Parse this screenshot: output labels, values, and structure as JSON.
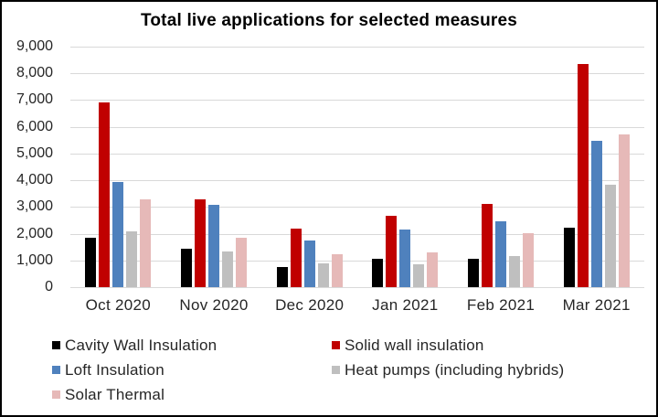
{
  "frame": {
    "background_color": "#FFFFFF",
    "border_color": "#000000"
  },
  "chart_data": {
    "type": "bar",
    "title": "Total live applications for selected measures",
    "xlabel": "",
    "ylabel": "",
    "categories": [
      "Oct 2020",
      "Nov 2020",
      "Dec 2020",
      "Jan 2021",
      "Feb 2021",
      "Mar 2021"
    ],
    "series": [
      {
        "name": "Cavity Wall Insulation",
        "color": "#000000",
        "values": [
          1850,
          1430,
          740,
          1050,
          1060,
          2230
        ]
      },
      {
        "name": "Solid wall insulation",
        "color": "#C00000",
        "values": [
          6900,
          3290,
          2190,
          2680,
          3120,
          8350
        ]
      },
      {
        "name": "Loft Insulation",
        "color": "#4F81BD",
        "values": [
          3950,
          3090,
          1750,
          2150,
          2460,
          5480
        ]
      },
      {
        "name": "Heat pumps (including hybrids)",
        "color": "#BFBFBF",
        "values": [
          2080,
          1340,
          880,
          860,
          1180,
          3830
        ]
      },
      {
        "name": "Solar Thermal",
        "color": "#E6B9B8",
        "values": [
          3280,
          1850,
          1230,
          1310,
          2020,
          5730
        ]
      }
    ],
    "ylim": [
      0,
      9000
    ],
    "y_ticks": [
      0,
      1000,
      2000,
      3000,
      4000,
      5000,
      6000,
      7000,
      8000,
      9000
    ],
    "y_tick_labels": [
      "0",
      "1,000",
      "2,000",
      "3,000",
      "4,000",
      "5,000",
      "6,000",
      "7,000",
      "8,000",
      "9,000"
    ],
    "grid": "horizontal",
    "gridline_color": "#D9D9D9",
    "legend_position": "bottom, two columns"
  }
}
